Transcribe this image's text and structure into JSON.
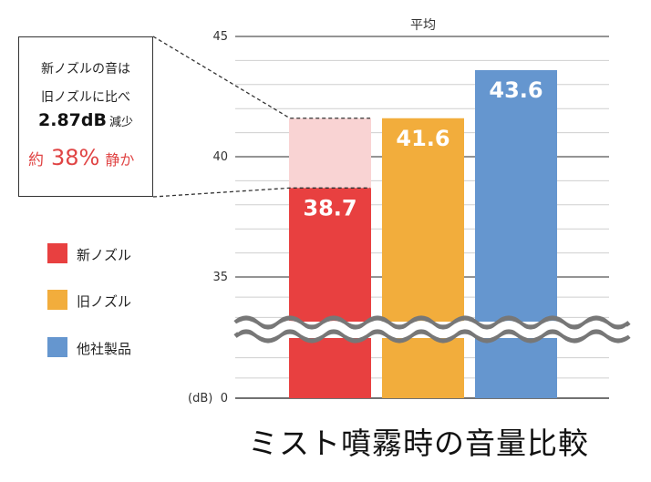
{
  "chart_data": {
    "type": "bar",
    "title": "ミスト噴霧時の音量比較",
    "subtitle": "平均",
    "ylabel": "(dB)",
    "ylim": [
      0,
      45
    ],
    "axis_break": true,
    "yticks": [
      {
        "value": 0,
        "label": "0"
      },
      {
        "value": 35,
        "label": "35"
      },
      {
        "value": 40,
        "label": "40"
      },
      {
        "value": 45,
        "label": "45"
      }
    ],
    "categories": [
      "新ノズル",
      "旧ノズル",
      "他社製品"
    ],
    "values": [
      38.7,
      41.6,
      43.6
    ],
    "value_labels": [
      "38.7",
      "41.6",
      "43.6"
    ],
    "colors": [
      "#e84040",
      "#f2ad3c",
      "#6596cf"
    ],
    "highlight_color": "#f9d3d3",
    "legend": [
      "新ノズル",
      "旧ノズル",
      "他社製品"
    ],
    "legend_position": "left",
    "annotation": {
      "line1": "新ノズルの音は",
      "line2": "旧ノズルに比べ",
      "reduction": "2.87dB",
      "reduction_suffix": "減少",
      "approx_prefix": "約",
      "percent": "38%",
      "percent_suffix": "静か"
    }
  }
}
